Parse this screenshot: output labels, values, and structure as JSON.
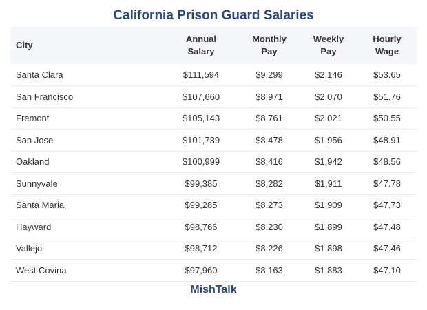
{
  "title": "California Prison Guard Salaries",
  "headers": {
    "city": "City",
    "annual_1": "Annual",
    "annual_2": "Salary",
    "monthly_1": "Monthly",
    "monthly_2": "Pay",
    "weekly_1": "Weekly",
    "weekly_2": "Pay",
    "hourly_1": "Hourly",
    "hourly_2": "Wage"
  },
  "rows": [
    {
      "city": "Santa Clara",
      "annual": "$111,594",
      "monthly": "$9,299",
      "weekly": "$2,146",
      "hourly": "$53.65"
    },
    {
      "city": "San Francisco",
      "annual": "$107,660",
      "monthly": "$8,971",
      "weekly": "$2,070",
      "hourly": "$51.76"
    },
    {
      "city": "Fremont",
      "annual": "$105,143",
      "monthly": "$8,761",
      "weekly": "$2,021",
      "hourly": "$50.55"
    },
    {
      "city": "San Jose",
      "annual": "$101,739",
      "monthly": "$8,478",
      "weekly": "$1,956",
      "hourly": "$48.91"
    },
    {
      "city": "Oakland",
      "annual": "$100,999",
      "monthly": "$8,416",
      "weekly": "$1,942",
      "hourly": "$48.56"
    },
    {
      "city": "Sunnyvale",
      "annual": "$99,385",
      "monthly": "$8,282",
      "weekly": "$1,911",
      "hourly": "$47.78"
    },
    {
      "city": "Santa Maria",
      "annual": "$99,285",
      "monthly": "$8,273",
      "weekly": "$1,909",
      "hourly": "$47.73"
    },
    {
      "city": "Hayward",
      "annual": "$98,766",
      "monthly": "$8,230",
      "weekly": "$1,899",
      "hourly": "$47.48"
    },
    {
      "city": "Vallejo",
      "annual": "$98,712",
      "monthly": "$8,226",
      "weekly": "$1,898",
      "hourly": "$47.46"
    },
    {
      "city": "West Covina",
      "annual": "$97,960",
      "monthly": "$8,163",
      "weekly": "$1,883",
      "hourly": "$47.10"
    }
  ],
  "footer": "MishTalk",
  "colors": {
    "title": "#2a4a7f",
    "header_bg": "#f4f6f9",
    "text": "#333333"
  }
}
